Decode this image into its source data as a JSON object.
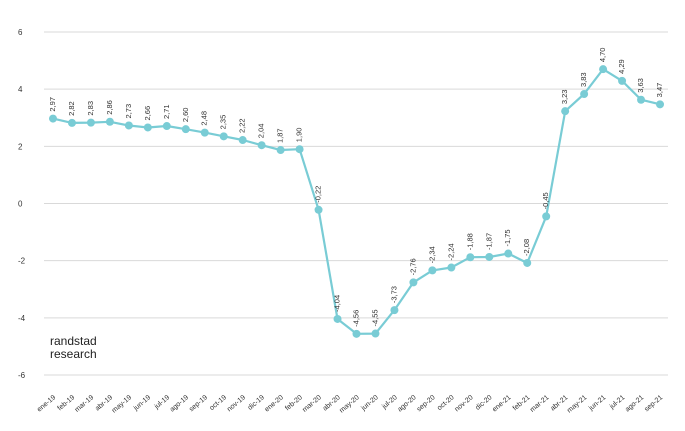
{
  "brand": {
    "line1": "randstad",
    "line2": "research"
  },
  "chart_data": {
    "type": "line",
    "title": "",
    "xlabel": "",
    "ylabel": "",
    "ylim": [
      -6,
      6
    ],
    "yticks": [
      6,
      4,
      2,
      0,
      -2,
      -4,
      -6
    ],
    "ytick_labels": [
      "6",
      "4",
      "2",
      "0",
      "-2",
      "-4",
      "-6"
    ],
    "grid": true,
    "legend": "none",
    "colors": {
      "line": "#79ccd5",
      "marker": "#79ccd5",
      "grid": "#d9d9d9",
      "text": "#333333"
    },
    "categories": [
      "ene-19",
      "feb-19",
      "mar-19",
      "abr-19",
      "may-19",
      "jun-19",
      "jul-19",
      "ago-19",
      "sep-19",
      "oct-19",
      "nov-19",
      "dic-19",
      "ene-20",
      "feb-20",
      "mar-20",
      "abr-20",
      "may-20",
      "jun-20",
      "jul-20",
      "ago-20",
      "sep-20",
      "oct-20",
      "nov-20",
      "dic-20",
      "ene-21",
      "feb-21",
      "mar-21",
      "abr-21",
      "may-21",
      "jun-21",
      "jul-21",
      "ago-21",
      "sep-21"
    ],
    "values": [
      2.97,
      2.82,
      2.83,
      2.86,
      2.73,
      2.66,
      2.71,
      2.6,
      2.48,
      2.35,
      2.22,
      2.04,
      1.87,
      1.9,
      -0.22,
      -4.04,
      -4.56,
      -4.55,
      -3.73,
      -2.76,
      -2.34,
      -2.24,
      -1.88,
      -1.87,
      -1.75,
      -2.08,
      -0.45,
      3.23,
      3.83,
      4.7,
      4.29,
      3.63,
      3.47
    ],
    "data_labels": [
      "2,97",
      "2,82",
      "2,83",
      "2,86",
      "2,73",
      "2,66",
      "2,71",
      "2,60",
      "2,48",
      "2,35",
      "2,22",
      "2,04",
      "1,87",
      "1,90",
      "-0,22",
      "-4,04",
      "-4,56",
      "-4,55",
      "-3,73",
      "-2,76",
      "-2,34",
      "-2,24",
      "-1,88",
      "-1,87",
      "-1,75",
      "-2,08",
      "-0,45",
      "3,23",
      "3,83",
      "4,70",
      "4,29",
      "3,63",
      "3,47"
    ]
  }
}
